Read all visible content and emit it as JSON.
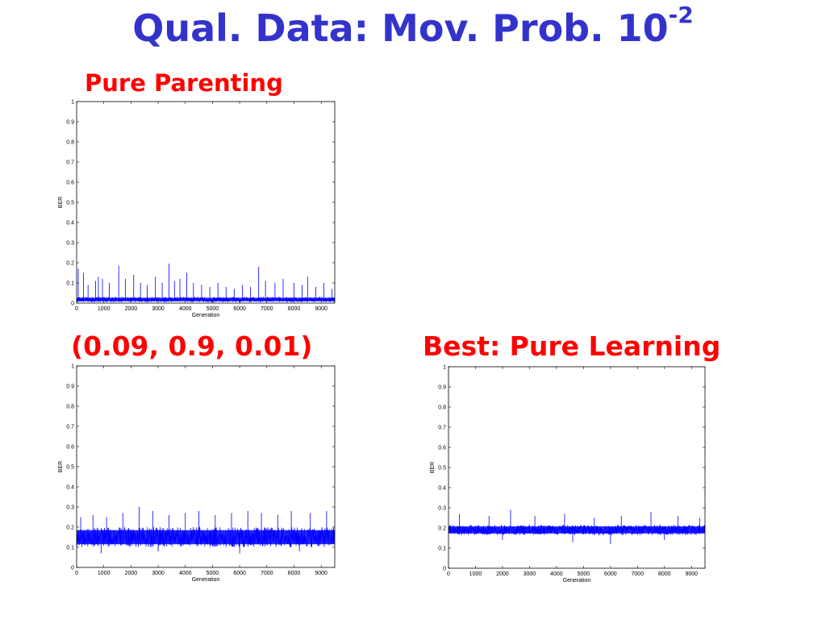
{
  "title": {
    "text": "Qual. Data: Mov. Prob. 10",
    "superscript": "-2",
    "color": "#3333cc"
  },
  "captions": [
    "Pure Parenting",
    "(0.09, 0.9, 0.01)",
    "Best: Pure Learning"
  ],
  "caption_color": "#ff0000",
  "series_color": "#0000ff",
  "chart_data": [
    {
      "type": "line",
      "title": "",
      "xlabel": "Generation",
      "ylabel": "BER",
      "xlim": [
        0,
        9500
      ],
      "ylim": [
        0,
        1
      ],
      "xticks": [
        0,
        1000,
        2000,
        3000,
        4000,
        5000,
        6000,
        7000,
        8000,
        9000
      ],
      "yticks": [
        0,
        0.1,
        0.2,
        0.3,
        0.4,
        0.5,
        0.6,
        0.7,
        0.8,
        0.9,
        1
      ],
      "grid": false,
      "band": {
        "low": 0.005,
        "high": 0.03
      },
      "spikes": [
        {
          "x": 60,
          "y": 0.17
        },
        {
          "x": 250,
          "y": 0.15
        },
        {
          "x": 420,
          "y": 0.09
        },
        {
          "x": 700,
          "y": 0.11
        },
        {
          "x": 800,
          "y": 0.13
        },
        {
          "x": 950,
          "y": 0.12
        },
        {
          "x": 1200,
          "y": 0.1
        },
        {
          "x": 1550,
          "y": 0.185
        },
        {
          "x": 1800,
          "y": 0.12
        },
        {
          "x": 2100,
          "y": 0.14
        },
        {
          "x": 2350,
          "y": 0.1
        },
        {
          "x": 2600,
          "y": 0.09
        },
        {
          "x": 2900,
          "y": 0.13
        },
        {
          "x": 3150,
          "y": 0.1
        },
        {
          "x": 3400,
          "y": 0.195
        },
        {
          "x": 3600,
          "y": 0.11
        },
        {
          "x": 3800,
          "y": 0.12
        },
        {
          "x": 4050,
          "y": 0.15
        },
        {
          "x": 4300,
          "y": 0.1
        },
        {
          "x": 4600,
          "y": 0.09
        },
        {
          "x": 4900,
          "y": 0.08
        },
        {
          "x": 5200,
          "y": 0.1
        },
        {
          "x": 5500,
          "y": 0.08
        },
        {
          "x": 5800,
          "y": 0.07
        },
        {
          "x": 6100,
          "y": 0.09
        },
        {
          "x": 6400,
          "y": 0.08
        },
        {
          "x": 6700,
          "y": 0.18
        },
        {
          "x": 6950,
          "y": 0.11
        },
        {
          "x": 7300,
          "y": 0.1
        },
        {
          "x": 7600,
          "y": 0.12
        },
        {
          "x": 8000,
          "y": 0.1
        },
        {
          "x": 8300,
          "y": 0.09
        },
        {
          "x": 8500,
          "y": 0.13
        },
        {
          "x": 8800,
          "y": 0.08
        },
        {
          "x": 9100,
          "y": 0.1
        },
        {
          "x": 9400,
          "y": 0.07
        }
      ]
    },
    {
      "type": "line",
      "title": "",
      "xlabel": "Generation",
      "ylabel": "BER",
      "xlim": [
        0,
        9500
      ],
      "ylim": [
        0,
        1
      ],
      "xticks": [
        0,
        1000,
        2000,
        3000,
        4000,
        5000,
        6000,
        7000,
        8000,
        9000
      ],
      "yticks": [
        0,
        0.1,
        0.2,
        0.3,
        0.4,
        0.5,
        0.6,
        0.7,
        0.8,
        0.9,
        1
      ],
      "grid": false,
      "band": {
        "low": 0.1,
        "high": 0.2
      },
      "spikes": [
        {
          "x": 150,
          "y": 0.25
        },
        {
          "x": 600,
          "y": 0.26
        },
        {
          "x": 1100,
          "y": 0.25
        },
        {
          "x": 1700,
          "y": 0.27
        },
        {
          "x": 2300,
          "y": 0.3
        },
        {
          "x": 2800,
          "y": 0.28
        },
        {
          "x": 3400,
          "y": 0.26
        },
        {
          "x": 4000,
          "y": 0.27
        },
        {
          "x": 4500,
          "y": 0.28
        },
        {
          "x": 5100,
          "y": 0.26
        },
        {
          "x": 5700,
          "y": 0.27
        },
        {
          "x": 6300,
          "y": 0.28
        },
        {
          "x": 6800,
          "y": 0.27
        },
        {
          "x": 7400,
          "y": 0.26
        },
        {
          "x": 7900,
          "y": 0.28
        },
        {
          "x": 8600,
          "y": 0.27
        },
        {
          "x": 9200,
          "y": 0.28
        },
        {
          "x": 900,
          "y": 0.07
        },
        {
          "x": 3000,
          "y": 0.08
        },
        {
          "x": 6000,
          "y": 0.07
        },
        {
          "x": 8200,
          "y": 0.08
        }
      ]
    },
    {
      "type": "line",
      "title": "",
      "xlabel": "Generation",
      "ylabel": "BER",
      "xlim": [
        0,
        9500
      ],
      "ylim": [
        0,
        1
      ],
      "xticks": [
        0,
        1000,
        2000,
        3000,
        4000,
        5000,
        6000,
        7000,
        8000,
        9000
      ],
      "yticks": [
        0,
        0.1,
        0.2,
        0.3,
        0.4,
        0.5,
        0.6,
        0.7,
        0.8,
        0.9,
        1
      ],
      "grid": false,
      "band": {
        "low": 0.165,
        "high": 0.215
      },
      "spikes": [
        {
          "x": 400,
          "y": 0.27
        },
        {
          "x": 1500,
          "y": 0.26
        },
        {
          "x": 2300,
          "y": 0.29
        },
        {
          "x": 3200,
          "y": 0.26
        },
        {
          "x": 4300,
          "y": 0.27
        },
        {
          "x": 5400,
          "y": 0.25
        },
        {
          "x": 6400,
          "y": 0.26
        },
        {
          "x": 7500,
          "y": 0.28
        },
        {
          "x": 8500,
          "y": 0.26
        },
        {
          "x": 9300,
          "y": 0.25
        },
        {
          "x": 2000,
          "y": 0.14
        },
        {
          "x": 4600,
          "y": 0.13
        },
        {
          "x": 6000,
          "y": 0.12
        },
        {
          "x": 8000,
          "y": 0.14
        }
      ]
    }
  ]
}
